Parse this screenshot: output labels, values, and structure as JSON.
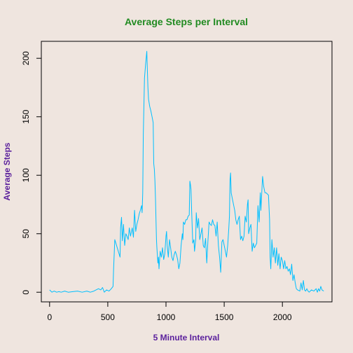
{
  "chart_data": {
    "type": "line",
    "title": "Average Steps per Interval",
    "xlabel": "5 Minute Interval",
    "ylabel": "Average Steps",
    "xlim": [
      -71,
      2426
    ],
    "ylim": [
      -8.25,
      214.5
    ],
    "x_ticks": [
      0,
      500,
      1000,
      1500,
      2000
    ],
    "y_ticks": [
      0,
      50,
      100,
      150,
      200
    ],
    "grid": false,
    "colors": {
      "background": "#efe5df",
      "line": "#00bfff",
      "title": "#228b22",
      "axis_title": "#5a1f9c",
      "axis": "#000000"
    },
    "series": [
      {
        "points": [
          [
            0,
            2
          ],
          [
            20,
            0
          ],
          [
            40,
            1
          ],
          [
            60,
            0
          ],
          [
            80,
            0.5
          ],
          [
            100,
            0
          ],
          [
            130,
            1
          ],
          [
            160,
            0
          ],
          [
            200,
            0.5
          ],
          [
            240,
            1
          ],
          [
            280,
            0
          ],
          [
            320,
            1
          ],
          [
            350,
            0
          ],
          [
            380,
            1
          ],
          [
            420,
            3
          ],
          [
            440,
            2
          ],
          [
            455,
            4
          ],
          [
            470,
            0
          ],
          [
            490,
            2
          ],
          [
            510,
            1
          ],
          [
            530,
            3
          ],
          [
            545,
            5
          ],
          [
            550,
            20
          ],
          [
            560,
            45
          ],
          [
            575,
            40
          ],
          [
            590,
            35
          ],
          [
            605,
            30
          ],
          [
            610,
            55
          ],
          [
            618,
            64
          ],
          [
            625,
            44
          ],
          [
            635,
            58
          ],
          [
            645,
            40
          ],
          [
            655,
            50
          ],
          [
            665,
            48
          ],
          [
            675,
            45
          ],
          [
            685,
            55
          ],
          [
            695,
            48
          ],
          [
            710,
            55
          ],
          [
            720,
            47
          ],
          [
            730,
            70
          ],
          [
            740,
            52
          ],
          [
            750,
            58
          ],
          [
            760,
            62
          ],
          [
            770,
            67
          ],
          [
            780,
            70
          ],
          [
            790,
            74
          ],
          [
            795,
            68
          ],
          [
            800,
            85
          ],
          [
            805,
            135
          ],
          [
            815,
            183
          ],
          [
            825,
            195
          ],
          [
            835,
            206
          ],
          [
            840,
            190
          ],
          [
            845,
            175
          ],
          [
            850,
            165
          ],
          [
            860,
            159
          ],
          [
            870,
            155
          ],
          [
            880,
            150
          ],
          [
            890,
            145
          ],
          [
            895,
            110
          ],
          [
            900,
            105
          ],
          [
            905,
            95
          ],
          [
            910,
            80
          ],
          [
            918,
            45
          ],
          [
            922,
            38
          ],
          [
            930,
            25
          ],
          [
            935,
            30
          ],
          [
            940,
            20
          ],
          [
            950,
            35
          ],
          [
            960,
            30
          ],
          [
            970,
            38
          ],
          [
            980,
            28
          ],
          [
            990,
            33
          ],
          [
            1000,
            48
          ],
          [
            1005,
            52
          ],
          [
            1010,
            40
          ],
          [
            1020,
            30
          ],
          [
            1030,
            45
          ],
          [
            1040,
            38
          ],
          [
            1050,
            30
          ],
          [
            1060,
            27
          ],
          [
            1070,
            32
          ],
          [
            1080,
            35
          ],
          [
            1090,
            32
          ],
          [
            1100,
            28
          ],
          [
            1110,
            20
          ],
          [
            1120,
            25
          ],
          [
            1130,
            40
          ],
          [
            1140,
            50
          ],
          [
            1145,
            45
          ],
          [
            1150,
            60
          ],
          [
            1160,
            58
          ],
          [
            1170,
            62
          ],
          [
            1180,
            62
          ],
          [
            1190,
            65
          ],
          [
            1200,
            66
          ],
          [
            1205,
            95
          ],
          [
            1210,
            92
          ],
          [
            1215,
            88
          ],
          [
            1220,
            70
          ],
          [
            1230,
            42
          ],
          [
            1240,
            45
          ],
          [
            1245,
            35
          ],
          [
            1255,
            45
          ],
          [
            1260,
            68
          ],
          [
            1270,
            55
          ],
          [
            1280,
            63
          ],
          [
            1290,
            45
          ],
          [
            1300,
            50
          ],
          [
            1310,
            55
          ],
          [
            1320,
            40
          ],
          [
            1330,
            38
          ],
          [
            1340,
            46
          ],
          [
            1350,
            25
          ],
          [
            1360,
            43
          ],
          [
            1370,
            60
          ],
          [
            1380,
            58
          ],
          [
            1390,
            57
          ],
          [
            1400,
            62
          ],
          [
            1410,
            58
          ],
          [
            1420,
            57
          ],
          [
            1430,
            48
          ],
          [
            1440,
            60
          ],
          [
            1450,
            40
          ],
          [
            1460,
            30
          ],
          [
            1470,
            17
          ],
          [
            1480,
            43
          ],
          [
            1490,
            45
          ],
          [
            1500,
            40
          ],
          [
            1510,
            35
          ],
          [
            1520,
            30
          ],
          [
            1530,
            40
          ],
          [
            1540,
            55
          ],
          [
            1545,
            65
          ],
          [
            1550,
            96
          ],
          [
            1555,
            102
          ],
          [
            1560,
            85
          ],
          [
            1570,
            80
          ],
          [
            1580,
            75
          ],
          [
            1590,
            70
          ],
          [
            1600,
            62
          ],
          [
            1610,
            58
          ],
          [
            1620,
            62
          ],
          [
            1630,
            65
          ],
          [
            1640,
            45
          ],
          [
            1650,
            48
          ],
          [
            1660,
            44
          ],
          [
            1670,
            48
          ],
          [
            1680,
            65
          ],
          [
            1690,
            60
          ],
          [
            1700,
            75
          ],
          [
            1705,
            79
          ],
          [
            1710,
            50
          ],
          [
            1720,
            55
          ],
          [
            1730,
            58
          ],
          [
            1740,
            35
          ],
          [
            1750,
            42
          ],
          [
            1760,
            38
          ],
          [
            1770,
            40
          ],
          [
            1780,
            42
          ],
          [
            1790,
            74
          ],
          [
            1800,
            60
          ],
          [
            1810,
            85
          ],
          [
            1815,
            70
          ],
          [
            1820,
            80
          ],
          [
            1830,
            99
          ],
          [
            1840,
            90
          ],
          [
            1850,
            85
          ],
          [
            1860,
            85
          ],
          [
            1870,
            84
          ],
          [
            1880,
            83
          ],
          [
            1890,
            62
          ],
          [
            1895,
            30
          ],
          [
            1900,
            20
          ],
          [
            1910,
            45
          ],
          [
            1920,
            30
          ],
          [
            1930,
            38
          ],
          [
            1940,
            25
          ],
          [
            1950,
            38
          ],
          [
            1960,
            23
          ],
          [
            1970,
            33
          ],
          [
            1980,
            20
          ],
          [
            1990,
            30
          ],
          [
            2000,
            27
          ],
          [
            2010,
            20
          ],
          [
            2020,
            27
          ],
          [
            2030,
            20
          ],
          [
            2040,
            22
          ],
          [
            2050,
            18
          ],
          [
            2060,
            20
          ],
          [
            2070,
            15
          ],
          [
            2080,
            24
          ],
          [
            2090,
            10
          ],
          [
            2100,
            15
          ],
          [
            2110,
            8
          ],
          [
            2120,
            3
          ],
          [
            2130,
            2
          ],
          [
            2150,
            1
          ],
          [
            2160,
            8
          ],
          [
            2170,
            2
          ],
          [
            2180,
            10
          ],
          [
            2190,
            2
          ],
          [
            2200,
            1
          ],
          [
            2210,
            3
          ],
          [
            2220,
            1
          ],
          [
            2230,
            0
          ],
          [
            2250,
            2
          ],
          [
            2270,
            1
          ],
          [
            2290,
            3
          ],
          [
            2300,
            0
          ],
          [
            2310,
            3
          ],
          [
            2320,
            1
          ],
          [
            2330,
            5
          ],
          [
            2340,
            2
          ],
          [
            2355,
            1
          ]
        ]
      }
    ]
  }
}
